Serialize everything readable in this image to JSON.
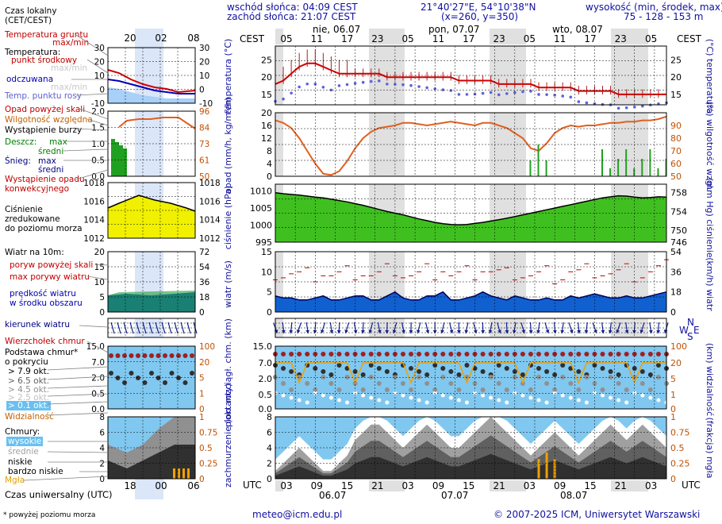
{
  "header": {
    "sunrise": "wschód słońca: 04:09 CEST",
    "sunset": "zachód słońca: 21:07 CEST",
    "coords": "21°40'27\"E, 54°10'38\"N",
    "grid": "(x=260, y=350)",
    "height_title": "wysokość (min, środek, max)",
    "height_values": "75 - 128 - 153 m"
  },
  "timezone": {
    "local_left": "CEST",
    "local_right": "CEST",
    "utc_left": "UTC",
    "utc_right": "UTC"
  },
  "day_labels_top": [
    {
      "text": "nie, 06.07"
    },
    {
      "text": "pon, 07.07"
    },
    {
      "text": "wto, 08.07"
    }
  ],
  "day_labels_bottom": [
    "06.07",
    "07.07",
    "08.07"
  ],
  "local_hours": [
    "05",
    "11",
    "17",
    "23",
    "05",
    "11",
    "17",
    "23",
    "05",
    "11",
    "17",
    "23",
    "05"
  ],
  "utc_hours": [
    "03",
    "09",
    "15",
    "21",
    "03",
    "09",
    "15",
    "21",
    "03",
    "09",
    "15",
    "21",
    "03"
  ],
  "mini": {
    "time_label": "Czas lokalny\n(CET/CEST)",
    "time_top": [
      "20",
      "02",
      "08"
    ],
    "time_bottom": [
      "18",
      "00",
      "06"
    ],
    "utc_label": "Czas uniwersalny (UTC)",
    "footnote": "* powyżej poziomu morza"
  },
  "legend": {
    "soil_temp": "Temperatura gruntu",
    "maxmin": "max/min",
    "temperature": "Temperatura:",
    "center": "punkt środkowy",
    "maxmin2": "max/min",
    "felt": "odczuwana",
    "maxmin3": "max/min",
    "dewpoint": "Temp. punktu rosy",
    "precip_above": "Opad powyżej skali",
    "humidity": "Wilgotność względna",
    "storm": "Wystąpienie burzy",
    "rain": "Deszcz:",
    "max": "max",
    "avg": "średni",
    "snow": "Śnieg:",
    "max2": "max",
    "avg2": "średni",
    "precip_occ": "Wystąpienie opadu\nkonwekcyjnego",
    "pressure": "Ciśnienie\nzredukowane\ndo poziomu morza",
    "wind10": "Wiatr na 10m:",
    "gust_above": "poryw powyżej skali",
    "gust_max": "max porywy wiatru",
    "wind_speed": "prędkość wiatru\nw środku obszaru",
    "wind_dir": "kierunek wiatru",
    "cloud_top": "Wierzchołek chmur",
    "cloud_base": "Podstawa chmur*\no pokryciu",
    "okt79": "> 7.9 okt.",
    "okt65": "> 6.5 okt.",
    "okt45": "> 4.5 okt.",
    "okt25": "> 2.5 okt.",
    "okt01": "> 0.1 okt.",
    "visibility": "Widzialność",
    "clouds": "Chmury:",
    "high": "wysokie",
    "mid": "średnie",
    "low": "niskie",
    "vlow": "bardzo niskie",
    "fog": "Mgła"
  },
  "panels": {
    "temp": {
      "left": "temperatura\n(°C)",
      "right": "(°C)\ntemperatura",
      "ticks": [
        "25",
        "20",
        "15"
      ]
    },
    "precip": {
      "left": "opad\n(mm/h, kg/m²/h)",
      "right": "(%)\nwilgotność wzgl.",
      "ticks_l": [
        "20",
        "16",
        "12",
        "8",
        "4",
        "0"
      ],
      "ticks_r": [
        "90",
        "80",
        "70",
        "60",
        "50"
      ]
    },
    "press": {
      "left": "ciśnienie\n(hPa)",
      "right": "(mm Hg)\nciśnienie",
      "ticks_l": [
        "1010",
        "1005",
        "1000",
        "995"
      ],
      "ticks_r": [
        "758",
        "754",
        "750",
        "746"
      ]
    },
    "wind": {
      "left": "wiatr\n(m/s)",
      "right": "(km/h)\nwiatr",
      "ticks_l": [
        "15",
        "10",
        "5",
        "0"
      ],
      "ticks_r": [
        "54",
        "36",
        "18",
        "0"
      ]
    },
    "cloudbase": {
      "left": "pion. rozciągł. chm.\n(km)",
      "right": "(km)\nwidzialność",
      "ticks_l": [
        "15.0",
        "7.0",
        "2.0",
        "0.5",
        "0.0"
      ],
      "ticks_r": [
        "100",
        "20",
        "5",
        "1",
        "0"
      ]
    },
    "cloudcov": {
      "left": "zachmurzenie\n(oktanty)",
      "right": "(frakcja)\nmgła",
      "ticks_l": [
        "8",
        "6",
        "4",
        "2",
        "0"
      ],
      "ticks_r": [
        "1",
        "0.75",
        "0.5",
        "0.25",
        "0"
      ]
    }
  },
  "mini_ticks": {
    "temp_l": [
      "30",
      "20",
      "10",
      "0",
      "-10"
    ],
    "temp_r": [
      "30",
      "20",
      "10",
      "0",
      "-10"
    ],
    "prec_l": [
      "2.0",
      "1.5",
      "1.0",
      "0.5",
      "0.0"
    ],
    "prec_r": [
      "96",
      "84",
      "73",
      "61",
      "50"
    ],
    "press_l": [
      "1018",
      "1016",
      "1014",
      "1012"
    ],
    "press_r": [
      "1018",
      "1016",
      "1014",
      "1012"
    ],
    "wind_l": [
      "20",
      "15",
      "10",
      "5",
      "0"
    ],
    "wind_r": [
      "72",
      "54",
      "36",
      "18",
      "0"
    ],
    "cb_l": [
      "15.0",
      "7.0",
      "2.0",
      "0.5",
      "0.0"
    ],
    "cb_r": [
      "100",
      "20",
      "5",
      "1",
      "0"
    ],
    "cc_l": [
      "8",
      "6",
      "4",
      "2",
      "0"
    ],
    "cc_r": [
      "1",
      "0.75",
      "0.5",
      "0.25",
      "0"
    ]
  },
  "compass": {
    "n": "N",
    "w": "W",
    "s": "S",
    "e": "E"
  },
  "footer": {
    "email": "meteo@icm.edu.pl",
    "copyright": "© 2007-2025 ICM, Uniwersytet Warszawski"
  },
  "chart_data": [
    {
      "type": "line",
      "title": "temperatura",
      "ylabel": "°C",
      "ylim": [
        12,
        29
      ],
      "series": [
        {
          "values": [
            18,
            19,
            21,
            23,
            24,
            24,
            23,
            22,
            21,
            21,
            21,
            21,
            21,
            21,
            20,
            20,
            20,
            20,
            20,
            20,
            20,
            20,
            20,
            19,
            19,
            19,
            19,
            19,
            18,
            18,
            18,
            18,
            18,
            17,
            17,
            17,
            17,
            17,
            16,
            16,
            16,
            16,
            16,
            15,
            15,
            15,
            15,
            15,
            15,
            15
          ]
        }
      ]
    },
    {
      "type": "line",
      "title": "wilgotność",
      "ylabel": "%",
      "ylim": [
        50,
        100
      ],
      "series": [
        {
          "values": [
            94,
            92,
            88,
            80,
            70,
            60,
            52,
            51,
            54,
            62,
            72,
            80,
            85,
            88,
            89,
            90,
            92,
            92,
            91,
            90,
            91,
            92,
            93,
            92,
            91,
            90,
            92,
            92,
            90,
            88,
            84,
            80,
            72,
            70,
            76,
            84,
            88,
            90,
            89,
            90,
            90,
            91,
            92,
            92,
            93,
            93,
            94,
            94,
            95,
            97
          ]
        }
      ]
    },
    {
      "type": "area",
      "title": "ciśnienie",
      "ylabel": "hPa",
      "ylim": [
        995,
        1012
      ],
      "series": [
        {
          "values": [
            1009.5,
            1009.2,
            1009,
            1008.8,
            1008.5,
            1008.2,
            1008,
            1007.6,
            1007.2,
            1006.8,
            1006.3,
            1005.8,
            1005.2,
            1004.6,
            1004,
            1003.5,
            1003,
            1002.4,
            1001.8,
            1001.3,
            1000.8,
            1000.4,
            1000.2,
            1000.1,
            1000.2,
            1000.5,
            1000.8,
            1001.2,
            1001.6,
            1002,
            1002.5,
            1003,
            1003.5,
            1004,
            1004.5,
            1005,
            1005.5,
            1006,
            1006.5,
            1007,
            1007.5,
            1008,
            1008.3,
            1008.6,
            1008.5,
            1008.2,
            1008,
            1008.1,
            1008.3,
            1008.2
          ]
        }
      ]
    },
    {
      "type": "area",
      "title": "wiatr",
      "ylabel": "m/s",
      "ylim": [
        0,
        15
      ],
      "series": [
        {
          "values": [
            4,
            3.5,
            3.5,
            3,
            3,
            3.5,
            4,
            3,
            3,
            3.5,
            4,
            4,
            3,
            3,
            4,
            5,
            3.5,
            3,
            3,
            4,
            4,
            5,
            3,
            3,
            3.5,
            4,
            5,
            4,
            3.5,
            3,
            4,
            3.5,
            3,
            3,
            3.5,
            3,
            3,
            4,
            3.5,
            4,
            4.5,
            4,
            3.5,
            3.5,
            4,
            3.5,
            3.5,
            4,
            4.5,
            5
          ]
        }
      ]
    },
    {
      "type": "area",
      "title": "zachmurzenie",
      "ylabel": "oktanty",
      "ylim": [
        0,
        8
      ],
      "series": [
        {
          "values": [
            1,
            2,
            3,
            4,
            3,
            2,
            1,
            1,
            2,
            3,
            5,
            6,
            7,
            7,
            6,
            5,
            4,
            5,
            6,
            7,
            6,
            5,
            4,
            4,
            5,
            6,
            7,
            8,
            7,
            6,
            5,
            4,
            3,
            4,
            5,
            6,
            5,
            4,
            3,
            4,
            5,
            6,
            7,
            6,
            5,
            6,
            7,
            6,
            5,
            4
          ]
        }
      ]
    }
  ]
}
